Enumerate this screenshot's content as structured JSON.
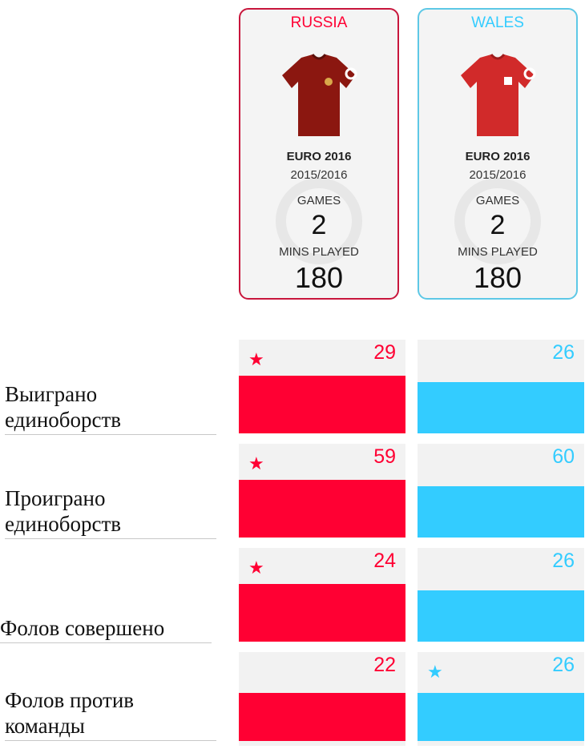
{
  "colors": {
    "russia": "#ff0033",
    "wales": "#33ccff"
  },
  "teams": [
    {
      "key": "russia",
      "name": "RUSSIA",
      "competition": "EURO 2016",
      "season": "2015/2016",
      "games_label": "GAMES",
      "games": "2",
      "mins_label": "MINS PLAYED",
      "mins": "180",
      "shirt_icon": "shirt-icon",
      "color": "#ff0033",
      "border": "#c8163c",
      "shirt_color": "#8b1710"
    },
    {
      "key": "wales",
      "name": "WALES",
      "competition": "EURO 2016",
      "season": "2015/2016",
      "games_label": "GAMES",
      "games": "2",
      "mins_label": "MINS PLAYED",
      "mins": "180",
      "shirt_icon": "shirt-icon",
      "color": "#33ccff",
      "border": "#5dc8e6",
      "shirt_color": "#d12a2a"
    }
  ],
  "stats": [
    {
      "label_lines": [
        "Выиграно",
        "единоборств"
      ],
      "russia": "29",
      "wales": "26",
      "star": "russia"
    },
    {
      "label_lines": [
        "Проиграно",
        "единоборств"
      ],
      "russia": "59",
      "wales": "60",
      "star": "russia"
    },
    {
      "label_lines": [
        "Фолов совершено"
      ],
      "russia": "24",
      "wales": "26",
      "star": "russia"
    },
    {
      "label_lines": [
        "Фолов против",
        "команды"
      ],
      "russia": "22",
      "wales": "26",
      "star": "wales"
    }
  ],
  "star_glyph": "★"
}
